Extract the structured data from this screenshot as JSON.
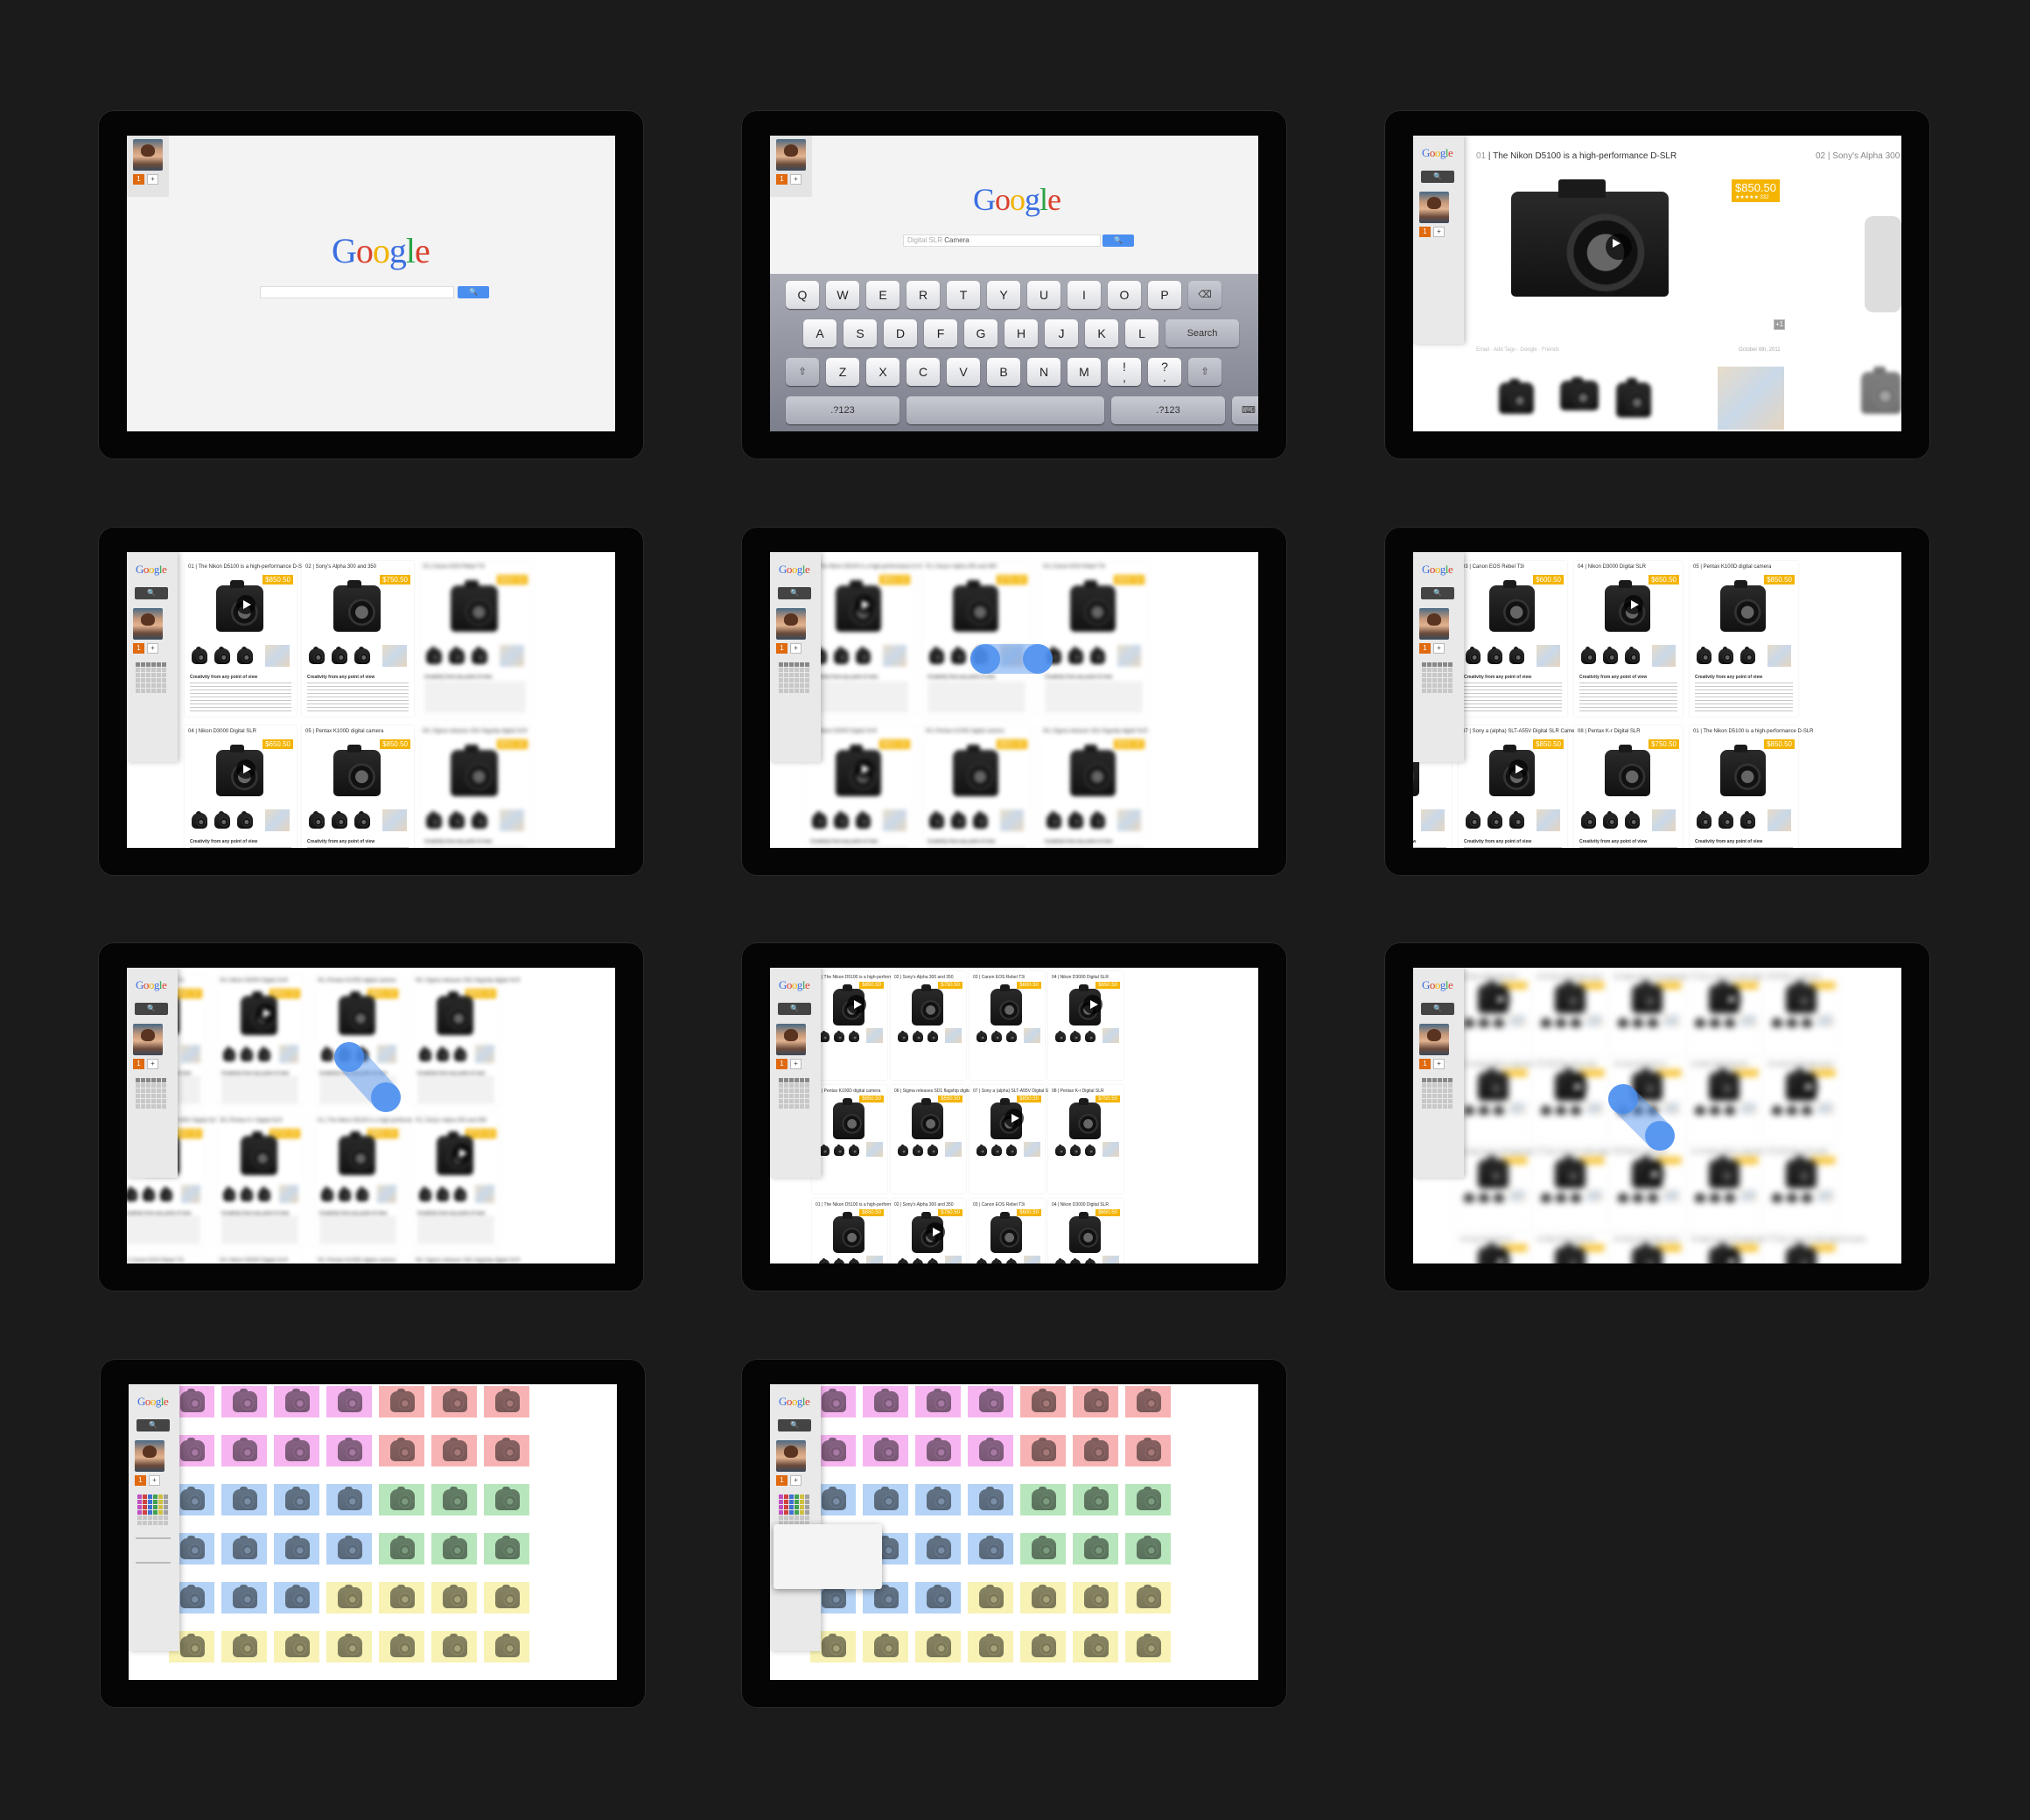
{
  "google": {
    "letters": [
      "G",
      "o",
      "o",
      "g",
      "l",
      "e"
    ],
    "search_btn": "🔍"
  },
  "query": {
    "hint": "Digital SLR",
    "value": "Camera"
  },
  "sidebar": {
    "badge": "1",
    "plus": "+",
    "search": "🔍"
  },
  "keyboard": {
    "row1": [
      "Q",
      "W",
      "E",
      "R",
      "T",
      "Y",
      "U",
      "I",
      "O",
      "P",
      "⌫"
    ],
    "row2": [
      "A",
      "S",
      "D",
      "F",
      "G",
      "H",
      "J",
      "K",
      "L",
      "Search"
    ],
    "row3": [
      "⇧",
      "Z",
      "X",
      "C",
      "V",
      "B",
      "N",
      "M",
      "!\n,",
      "?\n.",
      "⇧"
    ],
    "row4": [
      ".?123",
      "",
      ".?123",
      "⌨"
    ]
  },
  "detail": {
    "index1": "01",
    "title1": "The Nikon D5100 is a high-performance D-SLR",
    "index2": "02",
    "title2": "Sony's Alpha 300 a",
    "price": "$850.50",
    "rating": "★★★★★ 332",
    "date": "October 8th, 2011",
    "actions": [
      "Email",
      "Add Tags",
      "Google",
      "Friends"
    ],
    "more": "+1"
  },
  "grid": {
    "cards": [
      {
        "title": "01 | The Nikon D5100 is a high-performance D-SLR",
        "price": "$850.50"
      },
      {
        "title": "02 | Sony's Alpha 300 and 350",
        "price": "$750.50"
      },
      {
        "title": "03 | Canon EOS Rebel T3i",
        "price": "$600.50"
      },
      {
        "title": "04 | Nikon D3000 Digital SLR",
        "price": "$650.50"
      },
      {
        "title": "05 | Pentax K100D digital camera",
        "price": "$850.50"
      },
      {
        "title": "06 | Sigma releases SD1 flagship digital SLR",
        "price": "$550.50"
      },
      {
        "title": "07 | Sony a (alpha) SLT-A55V Digital SLR Camera",
        "price": "$850.50"
      },
      {
        "title": "08 | Pentax K-r Digital SLR",
        "price": "$750.50"
      }
    ],
    "snippet_title": "Creativity from any point of view"
  },
  "colors": {
    "accent": "#4a8ef0",
    "price": "#f4b400",
    "rows": [
      [
        "#f6b4f0",
        "#f6b4f0",
        "#f6b4f0",
        "#f6b4f0",
        "#f7b3b3",
        "#f7b3b3",
        "#f7b3b3"
      ],
      [
        "#f6b4f0",
        "#f6b4f0",
        "#f6b4f0",
        "#f6b4f0",
        "#f7b3b3",
        "#f7b3b3",
        "#f7b3b3"
      ],
      [
        "#b4d3f6",
        "#b4d3f6",
        "#b4d3f6",
        "#b4d3f6",
        "#b8e6bc",
        "#b8e6bc",
        "#b8e6bc"
      ],
      [
        "#b4d3f6",
        "#b4d3f6",
        "#b4d3f6",
        "#b4d3f6",
        "#b8e6bc",
        "#b8e6bc",
        "#b8e6bc"
      ],
      [
        "#b4d3f6",
        "#b4d3f6",
        "#b4d3f6",
        "#f8f2b4",
        "#f8f2b4",
        "#f8f2b4",
        "#f8f2b4"
      ],
      [
        "#f8f2b4",
        "#f8f2b4",
        "#f8f2b4",
        "#f8f2b4",
        "#f8f2b4",
        "#f8f2b4",
        "#f8f2b4"
      ]
    ]
  }
}
